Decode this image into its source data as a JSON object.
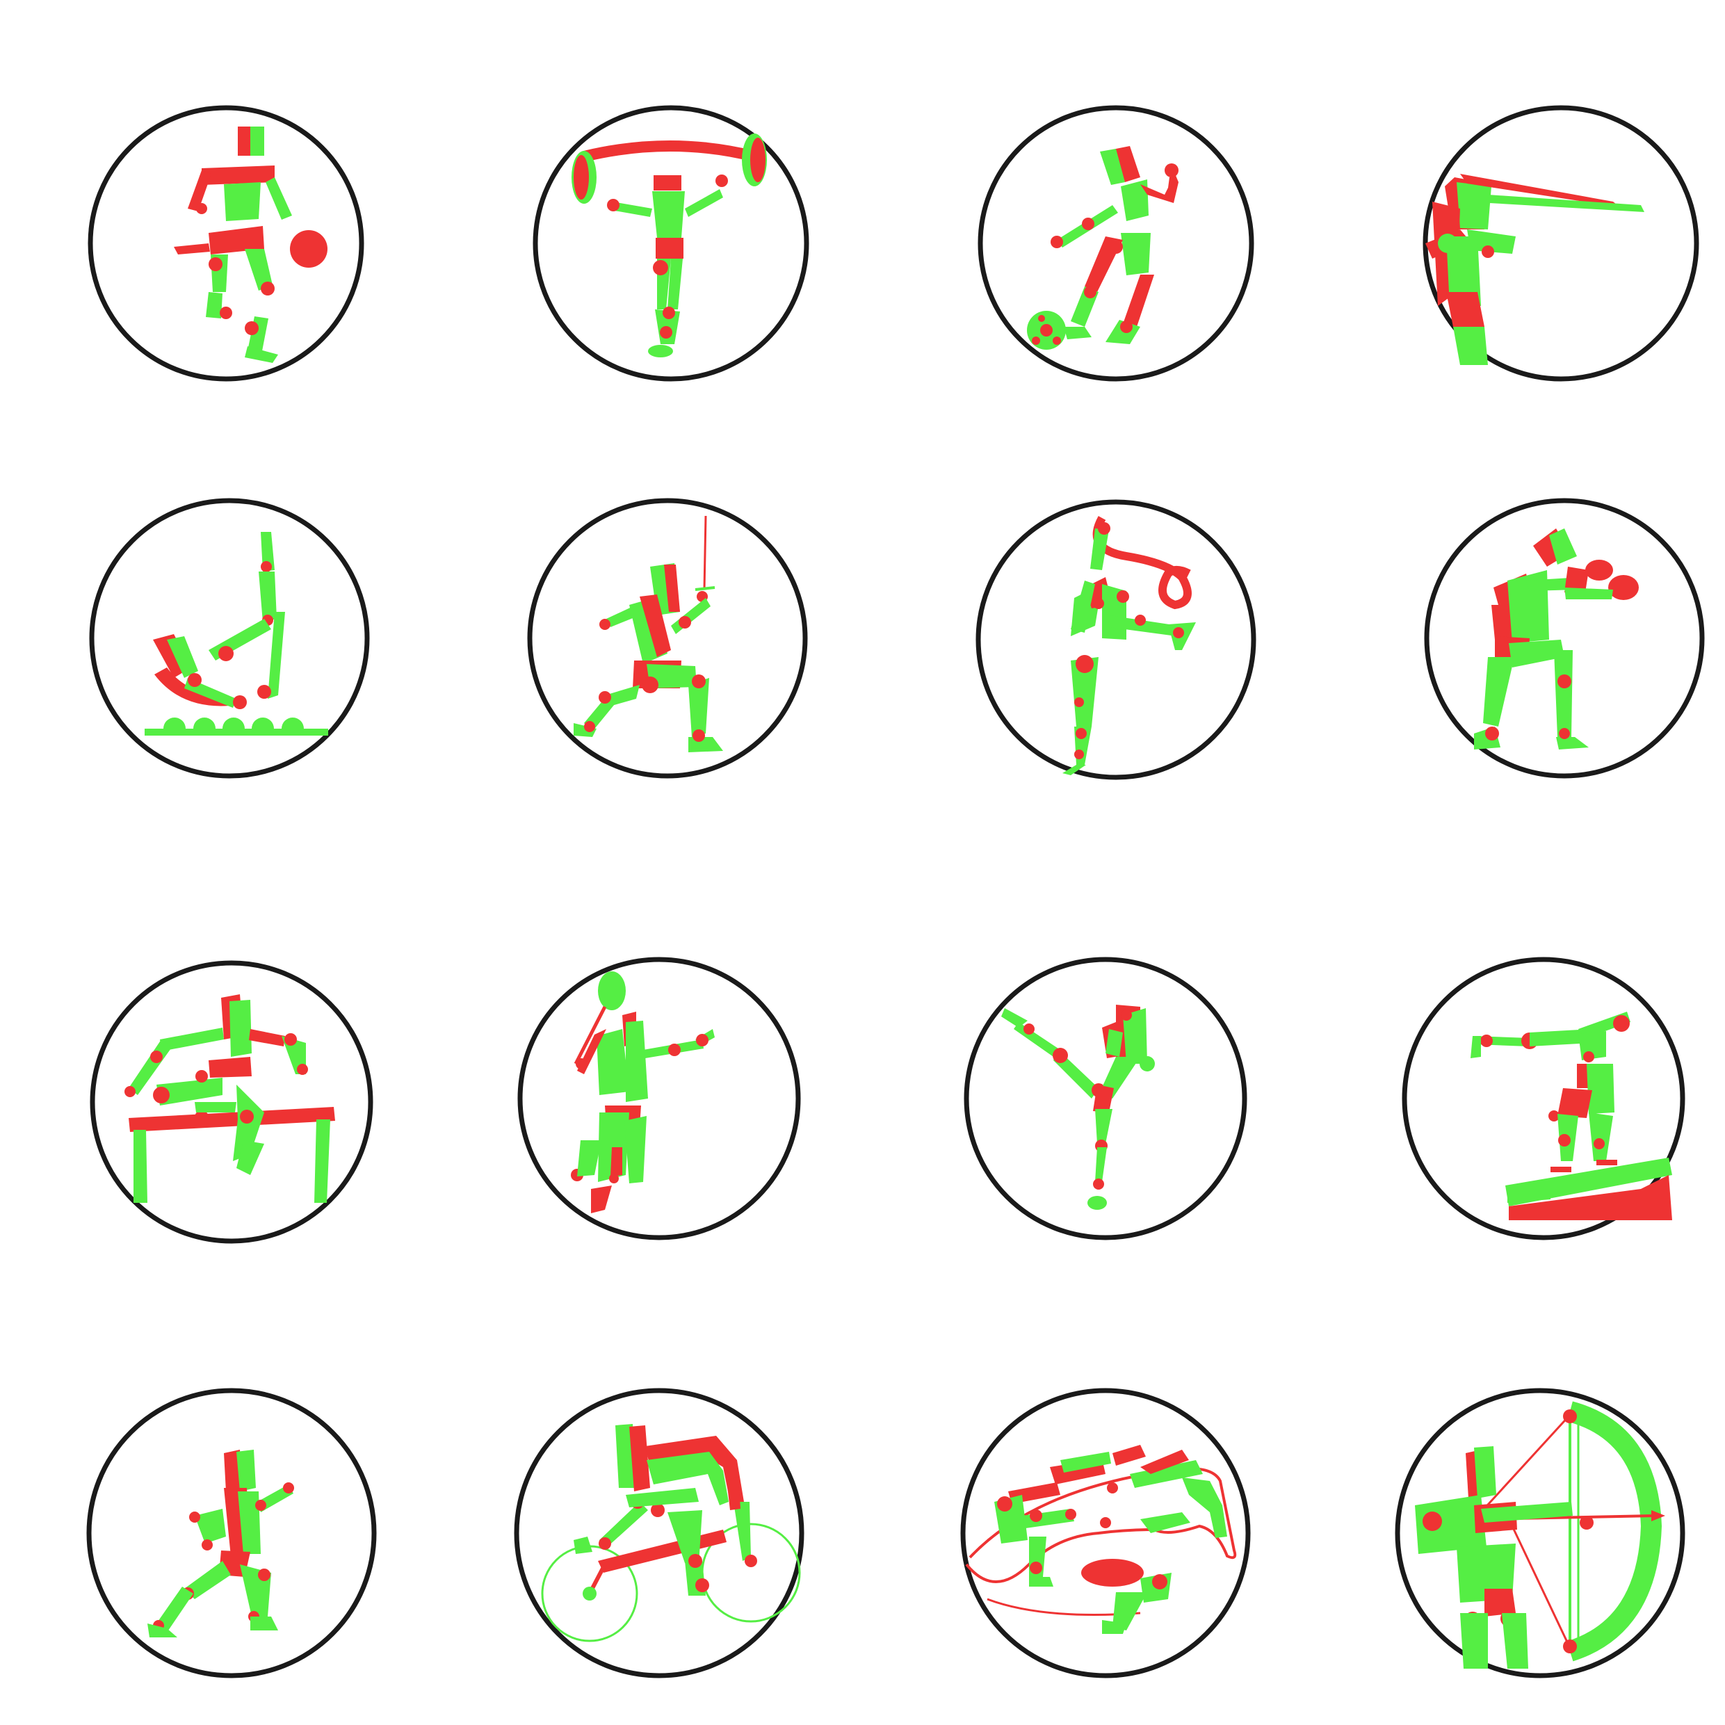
{
  "palette": {
    "green": "#55ee44",
    "red": "#ee3333",
    "outline": "#1a1a1a",
    "background": "#ffffff"
  },
  "pictograms": [
    {
      "sport": "basketball",
      "row": 1,
      "col": 1
    },
    {
      "sport": "weightlifting",
      "row": 1,
      "col": 2
    },
    {
      "sport": "football",
      "row": 1,
      "col": 3
    },
    {
      "sport": "shooting",
      "row": 1,
      "col": 4
    },
    {
      "sport": "trampoline",
      "row": 2,
      "col": 1
    },
    {
      "sport": "fencing",
      "row": 2,
      "col": 2
    },
    {
      "sport": "rhythmic-gymnastics",
      "row": 2,
      "col": 3
    },
    {
      "sport": "boxing",
      "row": 2,
      "col": 4
    },
    {
      "sport": "hurdles",
      "row": 3,
      "col": 1
    },
    {
      "sport": "badminton",
      "row": 3,
      "col": 2
    },
    {
      "sport": "taekwondo",
      "row": 3,
      "col": 3
    },
    {
      "sport": "pommel-horse",
      "row": 3,
      "col": 4
    },
    {
      "sport": "running",
      "row": 4,
      "col": 1
    },
    {
      "sport": "cycling",
      "row": 4,
      "col": 2
    },
    {
      "sport": "equestrian",
      "row": 4,
      "col": 3
    },
    {
      "sport": "archery",
      "row": 4,
      "col": 4
    }
  ]
}
